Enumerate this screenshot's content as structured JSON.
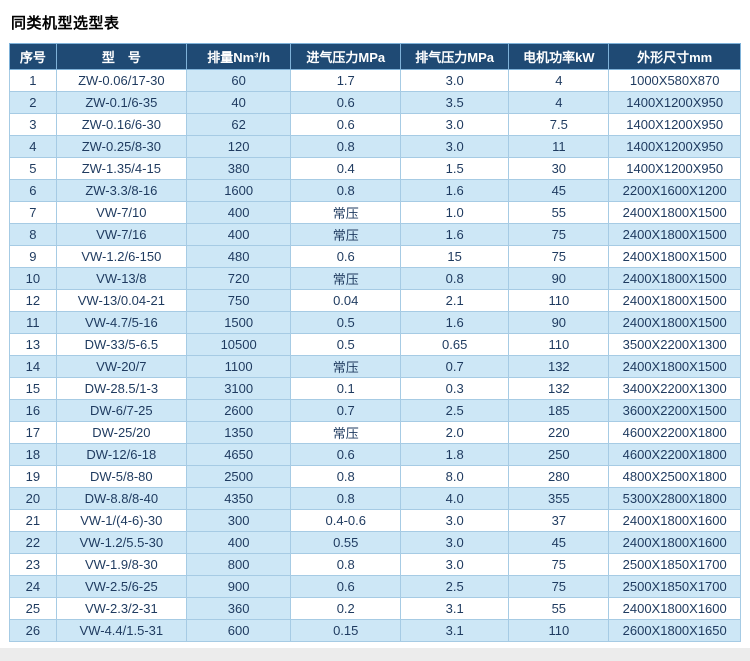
{
  "page": {
    "title": "同类机型选型表"
  },
  "colors": {
    "header_bg": "#1f4a74",
    "header_text": "#ffffff",
    "row_alt_bg": "#cde7f6",
    "row_bg": "#ffffff",
    "body_text": "#1e3a5f",
    "grid_line": "#a6cbe4",
    "footer_strip_bg": "#ececec"
  },
  "table": {
    "headers": [
      "序号",
      "型　号",
      "排量Nm³/h",
      "进气压力MPa",
      "排气压力MPa",
      "电机功率kW",
      "外形尺寸mm"
    ],
    "rows": [
      [
        "1",
        "ZW-0.06/17-30",
        "60",
        "1.7",
        "3.0",
        "4",
        "1000X580X870"
      ],
      [
        "2",
        "ZW-0.1/6-35",
        "40",
        "0.6",
        "3.5",
        "4",
        "1400X1200X950"
      ],
      [
        "3",
        "ZW-0.16/6-30",
        "62",
        "0.6",
        "3.0",
        "7.5",
        "1400X1200X950"
      ],
      [
        "4",
        "ZW-0.25/8-30",
        "120",
        "0.8",
        "3.0",
        "11",
        "1400X1200X950"
      ],
      [
        "5",
        "ZW-1.35/4-15",
        "380",
        "0.4",
        "1.5",
        "30",
        "1400X1200X950"
      ],
      [
        "6",
        "ZW-3.3/8-16",
        "1600",
        "0.8",
        "1.6",
        "45",
        "2200X1600X1200"
      ],
      [
        "7",
        "VW-7/10",
        "400",
        "常压",
        "1.0",
        "55",
        "2400X1800X1500"
      ],
      [
        "8",
        "VW-7/16",
        "400",
        "常压",
        "1.6",
        "75",
        "2400X1800X1500"
      ],
      [
        "9",
        "VW-1.2/6-150",
        "480",
        "0.6",
        "15",
        "75",
        "2400X1800X1500"
      ],
      [
        "10",
        "VW-13/8",
        "720",
        "常压",
        "0.8",
        "90",
        "2400X1800X1500"
      ],
      [
        "12",
        "VW-13/0.04-21",
        "750",
        "0.04",
        "2.1",
        "110",
        "2400X1800X1500"
      ],
      [
        "11",
        "VW-4.7/5-16",
        "1500",
        "0.5",
        "1.6",
        "90",
        "2400X1800X1500"
      ],
      [
        "13",
        "DW-33/5-6.5",
        "10500",
        "0.5",
        "0.65",
        "110",
        "3500X2200X1300"
      ],
      [
        "14",
        "VW-20/7",
        "1100",
        "常压",
        "0.7",
        "132",
        "2400X1800X1500"
      ],
      [
        "15",
        "DW-28.5/1-3",
        "3100",
        "0.1",
        "0.3",
        "132",
        "3400X2200X1300"
      ],
      [
        "16",
        "DW-6/7-25",
        "2600",
        "0.7",
        "2.5",
        "185",
        "3600X2200X1500"
      ],
      [
        "17",
        "DW-25/20",
        "1350",
        "常压",
        "2.0",
        "220",
        "4600X2200X1800"
      ],
      [
        "18",
        "DW-12/6-18",
        "4650",
        "0.6",
        "1.8",
        "250",
        "4600X2200X1800"
      ],
      [
        "19",
        "DW-5/8-80",
        "2500",
        "0.8",
        "8.0",
        "280",
        "4800X2500X1800"
      ],
      [
        "20",
        "DW-8.8/8-40",
        "4350",
        "0.8",
        "4.0",
        "355",
        "5300X2800X1800"
      ],
      [
        "21",
        "VW-1/(4-6)-30",
        "300",
        "0.4-0.6",
        "3.0",
        "37",
        "2400X1800X1600"
      ],
      [
        "22",
        "VW-1.2/5.5-30",
        "400",
        "0.55",
        "3.0",
        "45",
        "2400X1800X1600"
      ],
      [
        "23",
        "VW-1.9/8-30",
        "800",
        "0.8",
        "3.0",
        "75",
        "2500X1850X1700"
      ],
      [
        "24",
        "VW-2.5/6-25",
        "900",
        "0.6",
        "2.5",
        "75",
        "2500X1850X1700"
      ],
      [
        "25",
        "VW-2.3/2-31",
        "360",
        "0.2",
        "3.1",
        "55",
        "2400X1800X1600"
      ],
      [
        "26",
        "VW-4.4/1.5-31",
        "600",
        "0.15",
        "3.1",
        "110",
        "2600X1800X1650"
      ]
    ]
  }
}
